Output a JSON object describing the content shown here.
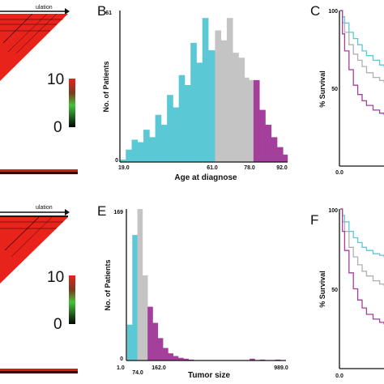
{
  "panels": {
    "A": {
      "header_text": "ulation",
      "scale_ticks": [
        "10",
        "0"
      ],
      "colors": {
        "main": "#e8231c",
        "dark": "#140202",
        "green": "#45c23a"
      }
    },
    "B": {
      "letter": "B"
    },
    "C": {
      "letter": "C",
      "y_ticks": [
        "100",
        "50"
      ],
      "x_tick": "0.0",
      "ylabel": "% Survival"
    },
    "D": {
      "header_text": "ulation",
      "scale_ticks": [
        "10",
        "0"
      ]
    },
    "E": {
      "letter": "E"
    },
    "F": {
      "letter": "F",
      "y_ticks": [
        "100",
        "50"
      ],
      "x_tick": "0.0",
      "ylabel": "% Survival"
    }
  },
  "chart_data": [
    {
      "type": "bar",
      "panel": "B",
      "xlabel": "Age at diagnose",
      "ylabel": "No. of Patients",
      "y_tick_top": "61",
      "y_tick_bottom": "0",
      "x_tick_labels": [
        "19.0",
        "61.0",
        "78.0",
        "92.0"
      ],
      "ylim": [
        0,
        61
      ],
      "xlim": [
        19,
        92
      ],
      "group_colors": {
        "low": "#5bc8d6",
        "mid": "#c4c4c4",
        "high": "#a43f9c"
      },
      "bars": [
        {
          "x": 19.0,
          "v": 1,
          "g": "low"
        },
        {
          "x": 21.6,
          "v": 5,
          "g": "low"
        },
        {
          "x": 24.2,
          "v": 9,
          "g": "low"
        },
        {
          "x": 26.8,
          "v": 8,
          "g": "low"
        },
        {
          "x": 29.4,
          "v": 13,
          "g": "low"
        },
        {
          "x": 32.0,
          "v": 10,
          "g": "low"
        },
        {
          "x": 34.6,
          "v": 19,
          "g": "low"
        },
        {
          "x": 37.2,
          "v": 15,
          "g": "low"
        },
        {
          "x": 39.8,
          "v": 27,
          "g": "low"
        },
        {
          "x": 42.4,
          "v": 22,
          "g": "low"
        },
        {
          "x": 45.0,
          "v": 35,
          "g": "low"
        },
        {
          "x": 47.6,
          "v": 31,
          "g": "low"
        },
        {
          "x": 50.2,
          "v": 48,
          "g": "low"
        },
        {
          "x": 52.8,
          "v": 40,
          "g": "low"
        },
        {
          "x": 55.4,
          "v": 58,
          "g": "low"
        },
        {
          "x": 58.0,
          "v": 45,
          "g": "low"
        },
        {
          "x": 61.0,
          "v": 53,
          "g": "mid"
        },
        {
          "x": 63.6,
          "v": 49,
          "g": "mid"
        },
        {
          "x": 66.2,
          "v": 58,
          "g": "mid"
        },
        {
          "x": 68.8,
          "v": 44,
          "g": "mid"
        },
        {
          "x": 71.4,
          "v": 42,
          "g": "mid"
        },
        {
          "x": 74.0,
          "v": 34,
          "g": "mid"
        },
        {
          "x": 76.0,
          "v": 33,
          "g": "mid"
        },
        {
          "x": 78.0,
          "v": 33,
          "g": "high"
        },
        {
          "x": 80.6,
          "v": 21,
          "g": "high"
        },
        {
          "x": 83.2,
          "v": 15,
          "g": "high"
        },
        {
          "x": 85.8,
          "v": 10,
          "g": "high"
        },
        {
          "x": 88.4,
          "v": 6,
          "g": "high"
        },
        {
          "x": 91.0,
          "v": 3,
          "g": "high"
        }
      ]
    },
    {
      "type": "bar",
      "panel": "E",
      "xlabel": "Tumor size",
      "ylabel": "No. of Patients",
      "y_tick_top": "169",
      "y_tick_bottom": "0",
      "x_tick_labels": [
        "1.0",
        "74.0",
        "162.0",
        "989.0"
      ],
      "ylim": [
        0,
        169
      ],
      "group_colors": {
        "low": "#5bc8d6",
        "mid": "#c4c4c4",
        "high": "#a43f9c"
      },
      "bars": [
        {
          "i": 0,
          "v": 40,
          "g": "low"
        },
        {
          "i": 1,
          "v": 140,
          "g": "low"
        },
        {
          "i": 2,
          "v": 169,
          "g": "mid"
        },
        {
          "i": 3,
          "v": 95,
          "g": "mid"
        },
        {
          "i": 4,
          "v": 60,
          "g": "high"
        },
        {
          "i": 5,
          "v": 42,
          "g": "high"
        },
        {
          "i": 6,
          "v": 25,
          "g": "high"
        },
        {
          "i": 7,
          "v": 14,
          "g": "high"
        },
        {
          "i": 8,
          "v": 8,
          "g": "high"
        },
        {
          "i": 9,
          "v": 5,
          "g": "high"
        },
        {
          "i": 10,
          "v": 3,
          "g": "high"
        },
        {
          "i": 11,
          "v": 2,
          "g": "high"
        },
        {
          "i": 12,
          "v": 1,
          "g": "high"
        },
        {
          "i": 24,
          "v": 2,
          "g": "high"
        },
        {
          "i": 26,
          "v": 1,
          "g": "high"
        },
        {
          "i": 29,
          "v": 1,
          "g": "high"
        }
      ]
    },
    {
      "type": "line",
      "panel": "C",
      "ylabel": "% Survival",
      "ylim": [
        0,
        100
      ],
      "series": [
        {
          "color": "#5bc8d6",
          "points": [
            [
              0,
              100
            ],
            [
              0.05,
              96
            ],
            [
              0.1,
              92
            ],
            [
              0.2,
              86
            ],
            [
              0.3,
              82
            ],
            [
              0.4,
              78
            ],
            [
              0.5,
              74
            ],
            [
              0.6,
              71
            ],
            [
              0.75,
              68
            ],
            [
              0.9,
              65
            ],
            [
              1,
              64
            ]
          ]
        },
        {
          "color": "#b0b0b0",
          "points": [
            [
              0,
              100
            ],
            [
              0.05,
              92
            ],
            [
              0.1,
              86
            ],
            [
              0.2,
              78
            ],
            [
              0.3,
              72
            ],
            [
              0.4,
              68
            ],
            [
              0.5,
              64
            ],
            [
              0.6,
              60
            ],
            [
              0.75,
              57
            ],
            [
              0.9,
              55
            ],
            [
              1,
              54
            ]
          ]
        },
        {
          "color": "#a43f9c",
          "points": [
            [
              0,
              100
            ],
            [
              0.05,
              85
            ],
            [
              0.1,
              74
            ],
            [
              0.2,
              62
            ],
            [
              0.3,
              52
            ],
            [
              0.4,
              46
            ],
            [
              0.5,
              42
            ],
            [
              0.6,
              39
            ],
            [
              0.75,
              36
            ],
            [
              0.9,
              34
            ],
            [
              1,
              33
            ]
          ]
        }
      ]
    },
    {
      "type": "line",
      "panel": "F",
      "ylabel": "% Survival",
      "ylim": [
        0,
        100
      ],
      "series": [
        {
          "color": "#5bc8d6",
          "points": [
            [
              0,
              100
            ],
            [
              0.05,
              96
            ],
            [
              0.1,
              92
            ],
            [
              0.2,
              86
            ],
            [
              0.3,
              82
            ],
            [
              0.4,
              79
            ],
            [
              0.5,
              76
            ],
            [
              0.6,
              74
            ],
            [
              0.75,
              72
            ],
            [
              0.9,
              71
            ],
            [
              1,
              70
            ]
          ]
        },
        {
          "color": "#b0b0b0",
          "points": [
            [
              0,
              100
            ],
            [
              0.05,
              92
            ],
            [
              0.1,
              86
            ],
            [
              0.2,
              76
            ],
            [
              0.3,
              70
            ],
            [
              0.4,
              65
            ],
            [
              0.5,
              61
            ],
            [
              0.6,
              58
            ],
            [
              0.75,
              55
            ],
            [
              0.9,
              53
            ],
            [
              1,
              52
            ]
          ]
        },
        {
          "color": "#a43f9c",
          "points": [
            [
              0,
              100
            ],
            [
              0.05,
              86
            ],
            [
              0.1,
              74
            ],
            [
              0.2,
              60
            ],
            [
              0.3,
              50
            ],
            [
              0.4,
              43
            ],
            [
              0.5,
              38
            ],
            [
              0.6,
              34
            ],
            [
              0.75,
              31
            ],
            [
              0.9,
              29
            ],
            [
              1,
              28
            ]
          ]
        }
      ]
    }
  ]
}
